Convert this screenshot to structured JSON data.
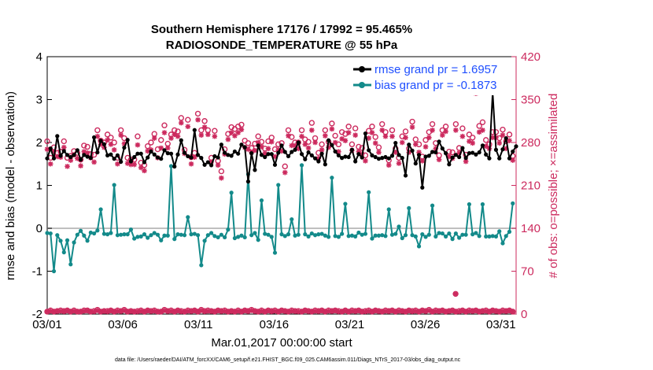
{
  "chart_data": {
    "type": "line",
    "title_line1": "Southern Hemisphere 17176 / 17992 = 95.465%",
    "title_line2": "RADIOSONDE_TEMPERATURE @ 55 hPa",
    "xlabel": "Mar.01,2017 00:00:00 start",
    "ylabel_left": "rmse and bias (model - observation)",
    "ylabel_right": "# of obs: o=possible; ×=assimilated",
    "footnote": "data file: /Users/raeder/DAI/ATM_forcXX/CAM6_setup/f.e21.FHIST_BGC.f09_025.CAM6assim.011/Diags_NTrS_2017-03/obs_diag_output.nc",
    "x_tick_labels": [
      "03/01",
      "03/06",
      "03/11",
      "03/16",
      "03/21",
      "03/26",
      "03/31"
    ],
    "x_tick_days": [
      1,
      6,
      11,
      16,
      21,
      26,
      31
    ],
    "xlim": [
      1,
      32
    ],
    "ylim_left": [
      -2,
      4
    ],
    "ylim_right": [
      0,
      420
    ],
    "left_ticks": [
      "-2",
      "-1",
      "0",
      "1",
      "2",
      "3",
      "4"
    ],
    "right_ticks": [
      "0",
      "70",
      "140",
      "210",
      "280",
      "350",
      "420"
    ],
    "zero_line": 0,
    "colors": {
      "rmse": "#000000",
      "bias": "#138a8a",
      "obs": "#cc2a5e",
      "legend_text": "#1f4fff",
      "zero_line": "#bfbfbf"
    },
    "series": [
      {
        "name": "rmse",
        "legend": "rmse grand pr = 1.6957",
        "values": [
          1.63,
          1.86,
          1.63,
          2.15,
          1.69,
          1.8,
          1.71,
          1.66,
          1.71,
          1.82,
          1.6,
          1.71,
          1.67,
          1.64,
          2.12,
          1.77,
          2.04,
          1.96,
          1.7,
          1.72,
          1.62,
          1.7,
          1.55,
          1.88,
          2.06,
          1.56,
          1.66,
          1.74,
          1.74,
          1.54,
          1.65,
          1.79,
          1.72,
          1.65,
          1.62,
          1.82,
          1.75,
          1.74,
          1.44,
          1.72,
          2.05,
          1.76,
          1.68,
          1.65,
          2.29,
          1.71,
          1.64,
          1.48,
          1.54,
          1.47,
          1.68,
          1.65,
          1.95,
          1.76,
          1.71,
          1.69,
          1.79,
          1.74,
          1.95,
          1.89,
          1.09,
          1.75,
          1.36,
          1.93,
          1.71,
          1.66,
          1.73,
          1.73,
          1.48,
          1.76,
          1.93,
          1.78,
          1.68,
          1.78,
          1.83,
          2.0,
          1.73,
          1.61,
          1.77,
          1.7,
          1.63,
          1.56,
          1.74,
          1.49,
          2.05,
          1.94,
          1.79,
          1.7,
          1.64,
          1.67,
          1.66,
          1.83,
          1.56,
          1.73,
          1.65,
          2.21,
          1.82,
          1.7,
          1.66,
          1.62,
          1.64,
          1.66,
          1.63,
          1.69,
          1.99,
          1.71,
          1.64,
          1.23,
          1.95,
          1.81,
          1.51,
          1.71,
          0.95,
          1.67,
          1.69,
          1.78,
          1.77,
          2.02,
          1.86,
          1.75,
          1.49,
          1.65,
          1.71,
          1.66,
          1.87,
          1.64,
          1.75,
          1.76,
          1.72,
          1.77,
          1.93,
          1.72,
          1.63,
          3.16,
          1.83,
          1.63,
          1.84,
          2.1,
          1.63,
          1.79,
          1.91
        ]
      },
      {
        "name": "bias",
        "legend": "bias grand pr = -0.1873",
        "values": [
          -0.11,
          -0.12,
          -1.0,
          -0.16,
          -0.29,
          -0.56,
          -0.28,
          -0.84,
          -0.33,
          -0.15,
          -0.06,
          -0.17,
          -0.29,
          -0.1,
          -0.12,
          -0.05,
          0.44,
          -0.13,
          -0.14,
          -0.11,
          1.01,
          -0.16,
          -0.15,
          -0.14,
          -0.14,
          -0.03,
          -0.24,
          -0.2,
          -0.19,
          -0.14,
          -0.22,
          -0.16,
          -0.11,
          -0.15,
          -0.28,
          -0.17,
          -0.17,
          1.45,
          -0.25,
          -0.14,
          -0.15,
          -0.16,
          0.26,
          -0.14,
          -0.13,
          -0.16,
          -0.86,
          -0.29,
          -0.16,
          -0.11,
          -0.18,
          -0.21,
          -0.15,
          -0.21,
          -0.03,
          0.83,
          -0.23,
          -0.2,
          -0.17,
          -0.21,
          1.26,
          -0.16,
          -0.11,
          -0.27,
          0.65,
          -0.13,
          -0.15,
          -0.2,
          -0.57,
          1.01,
          -0.14,
          -0.18,
          -0.14,
          0.21,
          -0.17,
          -0.15,
          1.47,
          -0.14,
          -0.19,
          -0.12,
          -0.16,
          -0.14,
          -0.13,
          -0.17,
          -0.2,
          1.18,
          -0.18,
          -0.2,
          -0.13,
          0.57,
          -0.18,
          -0.17,
          -0.19,
          -0.1,
          -0.15,
          -0.13,
          0.84,
          -0.24,
          -0.17,
          -0.17,
          -0.16,
          -0.18,
          0.44,
          -0.15,
          -0.13,
          0.04,
          -0.23,
          -0.16,
          0.47,
          -0.16,
          -0.19,
          -0.42,
          -0.14,
          -0.2,
          -0.15,
          0.53,
          -0.19,
          -0.11,
          -0.12,
          -0.19,
          -0.12,
          -0.25,
          -0.12,
          -0.22,
          -0.15,
          -0.15,
          0.56,
          -0.14,
          -0.11,
          -0.18,
          0.56,
          -0.19,
          -0.19,
          -0.18,
          -0.19,
          -0.07,
          -0.35,
          -0.18,
          -0.08,
          0.58
        ]
      },
      {
        "name": "obs_possible",
        "legend": "",
        "values": [
          4,
          6,
          4,
          5,
          6,
          5,
          6,
          4,
          6,
          4,
          4,
          6,
          6,
          4,
          5,
          7,
          4,
          5,
          5,
          6,
          4,
          6,
          5,
          7,
          4,
          5,
          4,
          5,
          6,
          4,
          6,
          5,
          6,
          4,
          4,
          7,
          5,
          6,
          4,
          6,
          5,
          4,
          6,
          5,
          6,
          4,
          7,
          5,
          6,
          5,
          4,
          6,
          5,
          6,
          4,
          5,
          4,
          6,
          4,
          6,
          5,
          7,
          5,
          4,
          6,
          4,
          6,
          5,
          6,
          4,
          6,
          5,
          4,
          6,
          5,
          5,
          4,
          6,
          5,
          4,
          6,
          5,
          6,
          4,
          6,
          5,
          6,
          5,
          4,
          6,
          4,
          6,
          5,
          6,
          4,
          5,
          6,
          4,
          6,
          5,
          4,
          6,
          5,
          6,
          4,
          6,
          5,
          4,
          6,
          5,
          6,
          4,
          6,
          5,
          7,
          4,
          6,
          5,
          6,
          4,
          5,
          6,
          4,
          5,
          6,
          4,
          6,
          5,
          6,
          4,
          5,
          6,
          4,
          6,
          5,
          4,
          6,
          5,
          6,
          4
        ]
      },
      {
        "name": "obs_assimilated",
        "legend": "",
        "values": [
          4,
          5,
          4,
          5,
          5,
          4,
          6,
          4,
          5,
          4,
          4,
          5,
          6,
          4,
          4,
          6,
          4,
          5,
          4,
          6,
          4,
          5,
          5,
          6,
          4,
          5,
          4,
          4,
          5,
          4,
          6,
          5,
          5,
          4,
          4,
          6,
          5,
          5,
          4,
          6,
          4,
          4,
          5,
          5,
          6,
          4,
          6,
          4,
          5,
          5,
          4,
          6,
          5,
          5,
          4,
          5,
          4,
          5,
          4,
          6,
          5,
          6,
          5,
          4,
          5,
          4,
          6,
          4,
          5,
          4,
          6,
          5,
          4,
          5,
          5,
          4,
          4,
          6,
          5,
          4,
          5,
          5,
          6,
          4,
          5,
          5,
          6,
          4,
          4,
          6,
          4,
          5,
          5,
          6,
          4,
          4,
          5,
          4,
          6,
          5,
          4,
          5,
          5,
          6,
          4,
          5,
          5,
          4,
          6,
          4,
          5,
          4,
          6,
          5,
          6,
          4,
          5,
          5,
          6,
          4,
          5,
          6,
          4,
          4,
          6,
          4,
          5,
          5,
          6,
          4,
          5,
          5,
          4,
          6,
          5,
          4,
          5,
          5,
          6,
          4
        ]
      },
      {
        "name": "obs_possible_upper",
        "legend": "",
        "values": [
          282,
          255,
          272,
          263,
          265,
          282,
          255,
          258,
          266,
          263,
          252,
          275,
          273,
          261,
          260,
          300,
          283,
          280,
          293,
          288,
          280,
          255,
          300,
          287,
          255,
          252,
          252,
          290,
          247,
          243,
          274,
          280,
          294,
          269,
          284,
          308,
          278,
          293,
          300,
          298,
          320,
          268,
          317,
          256,
          263,
          327,
          300,
          315,
          300,
          255,
          299,
          250,
          233,
          269,
          294,
          305,
          302,
          306,
          309,
          283,
          279,
          271,
          278,
          290,
          281,
          270,
          282,
          288,
          269,
          277,
          279,
          241,
          300,
          289,
          280,
          280,
          300,
          285,
          281,
          312,
          287,
          263,
          277,
          300,
          281,
          311,
          291,
          277,
          297,
          294,
          306,
          277,
          303,
          273,
          271,
          259,
          299,
          306,
          289,
          272,
          310,
          297,
          251,
          300,
          270,
          255,
          290,
          298,
          270,
          314,
          285,
          277,
          257,
          284,
          297,
          310,
          279,
          259,
          300,
          306,
          265,
          264,
          310,
          271,
          303,
          260,
          293,
          288,
          374,
          307,
          313,
          284,
          277,
          297,
          297,
          287,
          301,
          282,
          293,
          258
        ]
      },
      {
        "name": "obs_assimilated_upper",
        "legend": "",
        "values": [
          269,
          245,
          265,
          257,
          256,
          272,
          241,
          251,
          260,
          254,
          242,
          265,
          263,
          255,
          248,
          290,
          277,
          272,
          284,
          277,
          268,
          245,
          292,
          278,
          246,
          244,
          244,
          276,
          239,
          234,
          266,
          268,
          287,
          255,
          271,
          296,
          271,
          287,
          293,
          290,
          312,
          262,
          306,
          245,
          256,
          317,
          292,
          305,
          293,
          248,
          290,
          243,
          222,
          261,
          285,
          296,
          291,
          296,
          301,
          272,
          269,
          264,
          267,
          280,
          273,
          262,
          270,
          281,
          257,
          268,
          266,
          231,
          291,
          275,
          275,
          270,
          290,
          277,
          271,
          300,
          280,
          254,
          268,
          291,
          272,
          302,
          280,
          265,
          286,
          283,
          296,
          267,
          292,
          265,
          261,
          250,
          287,
          296,
          279,
          264,
          300,
          290,
          243,
          290,
          264,
          246,
          280,
          288,
          264,
          305,
          277,
          264,
          250,
          273,
          288,
          300,
          270,
          252,
          292,
          298,
          257,
          254,
          300,
          263,
          290,
          249,
          282,
          279,
          360,
          297,
          300,
          274,
          270,
          288,
          288,
          279,
          292,
          270,
          283,
          251
        ]
      },
      {
        "name": "obs_possible_anomaly",
        "legend": "",
        "points": [
          [
            28.0,
            33
          ]
        ]
      }
    ]
  }
}
